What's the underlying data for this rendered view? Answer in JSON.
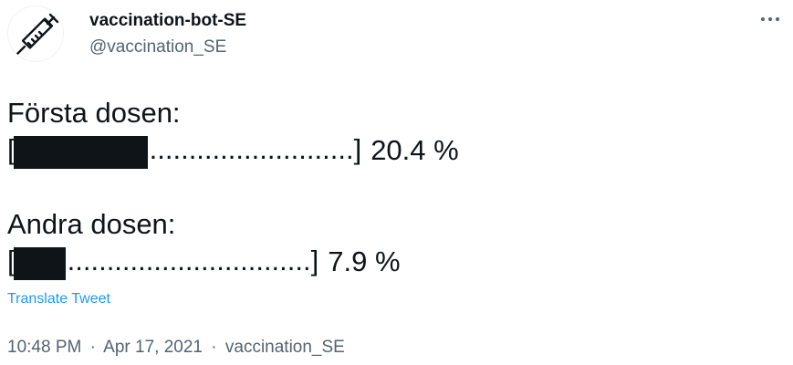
{
  "author": {
    "display_name": "vaccination-bot-SE",
    "handle": "@vaccination_SE",
    "avatar_icon": "syringe-icon"
  },
  "more_menu": {
    "icon": "more-dots-icon"
  },
  "tweet": {
    "dose1": {
      "label": "Första dosen:",
      "bar_open": "[",
      "bar_dots": "..........................",
      "bar_close": "]",
      "value_text": "20.4 %",
      "fraction": 0.204
    },
    "dose2": {
      "label": "Andra dosen:",
      "bar_open": "[",
      "bar_dots": "...............................",
      "bar_close": "]",
      "value_text": "7.9 %",
      "fraction": 0.079
    }
  },
  "translate_label": "Translate Tweet",
  "meta": {
    "time": "10:48 PM",
    "separator": "·",
    "date": "Apr 17, 2021",
    "source": "vaccination_SE"
  },
  "colors": {
    "text": "#0f1419",
    "secondary": "#536471",
    "link": "#1d9bf0"
  }
}
